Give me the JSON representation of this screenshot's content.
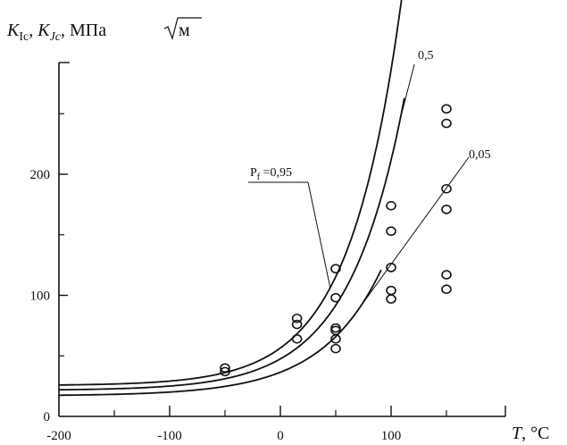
{
  "chart_data": {
    "type": "scatter",
    "title": "",
    "ylabel": {
      "k1": "K",
      "k1_sub": "Ic",
      "sep1": ", ",
      "k2": "K",
      "k2_sub": "Jc",
      "sep2": ", ",
      "units": "МПа",
      "root": "м"
    },
    "xlabel": {
      "symbol": "T",
      "units": ", °C"
    },
    "xlim": [
      -200,
      172
    ],
    "ylim": [
      0,
      290
    ],
    "x_ticks": [
      {
        "value": -200,
        "label": "-200"
      },
      {
        "value": -100,
        "label": "-100"
      },
      {
        "value": 0,
        "label": "0"
      },
      {
        "value": 100,
        "label": "100"
      }
    ],
    "x_minor_ticks": [
      -150,
      -50,
      50,
      150
    ],
    "y_ticks": [
      {
        "value": 0,
        "label": "0"
      },
      {
        "value": 100,
        "label": "100"
      },
      {
        "value": 200,
        "label": "200"
      }
    ],
    "y_minor_ticks": [
      50,
      150,
      250
    ],
    "grid": false,
    "curve_model": "K = A + B·exp(C·T)",
    "curves": [
      {
        "name": "0,95",
        "A": 25.5,
        "B": 31.0,
        "C": 0.0213,
        "x_end": 142
      },
      {
        "name": "0,5",
        "A": 21.5,
        "B": 26.0,
        "C": 0.0199,
        "x_end": 112
      },
      {
        "name": "0,05",
        "A": 17.0,
        "B": 19.5,
        "C": 0.0184,
        "x_end": 91
      }
    ],
    "annotations": [
      {
        "text": "0,95",
        "prefix": "P",
        "prefix_sub": "f",
        "prefix_eq": " =",
        "curve": "0,95"
      },
      {
        "text": "0,5",
        "curve": "0,5"
      },
      {
        "text": "0,05",
        "curve": "0,05"
      }
    ],
    "points": [
      {
        "x": -50,
        "y": 40
      },
      {
        "x": -50,
        "y": 37
      },
      {
        "x": 15,
        "y": 81
      },
      {
        "x": 15,
        "y": 76
      },
      {
        "x": 15,
        "y": 64
      },
      {
        "x": 50,
        "y": 122
      },
      {
        "x": 50,
        "y": 98
      },
      {
        "x": 50,
        "y": 73
      },
      {
        "x": 50,
        "y": 71
      },
      {
        "x": 50,
        "y": 64
      },
      {
        "x": 50,
        "y": 56
      },
      {
        "x": 100,
        "y": 174
      },
      {
        "x": 100,
        "y": 153
      },
      {
        "x": 100,
        "y": 123
      },
      {
        "x": 100,
        "y": 104
      },
      {
        "x": 100,
        "y": 97
      },
      {
        "x": 150,
        "y": 254
      },
      {
        "x": 150,
        "y": 242
      },
      {
        "x": 150,
        "y": 188
      },
      {
        "x": 150,
        "y": 171
      },
      {
        "x": 150,
        "y": 117
      },
      {
        "x": 150,
        "y": 105
      }
    ]
  }
}
